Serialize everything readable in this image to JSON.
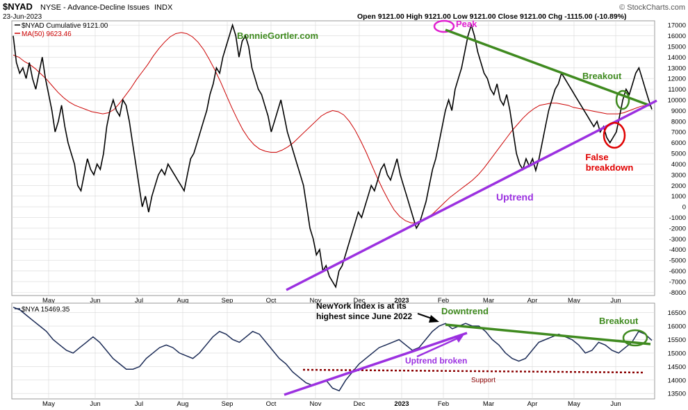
{
  "header": {
    "symbol": "$NYAD",
    "description": "NYSE - Advance-Decline Issues",
    "exchange": "INDX",
    "date": "23-Jun-2023",
    "ohlc": "Open 9121.00   High 9121.00   Low 9121.00   Close 9121.00   Chg -1115.00 (-10.89%)",
    "brand": "© StockCharts.com"
  },
  "colors": {
    "price": "#000000",
    "ma": "#cc0000",
    "nya": "#1a2a55",
    "green": "#3f8a1f",
    "purple": "#9b30e0",
    "red": "#e00000",
    "magenta": "#e020d0",
    "support": "#8b0000",
    "grid": "#d8d8d8"
  },
  "chart_data": [
    {
      "type": "line",
      "legend": [
        "$NYAD Cumulative 9121.00",
        "MA(50) 9623.46"
      ],
      "y_ticks": [
        17000,
        16000,
        15000,
        14000,
        13000,
        12000,
        11000,
        10000,
        9000,
        8000,
        7000,
        6000,
        5000,
        4000,
        3000,
        2000,
        1000,
        0,
        -1000,
        -2000,
        -3000,
        -4000,
        -5000,
        -6000,
        -7000,
        -8000
      ],
      "ylim": [
        -8300,
        17400
      ],
      "months": [
        "May",
        "Jun",
        "Jul",
        "Aug",
        "Sep",
        "Oct",
        "Nov",
        "Dec",
        "2023",
        "Feb",
        "Mar",
        "Apr",
        "May",
        "Jun"
      ],
      "series": [
        {
          "name": "$NYAD Cumulative",
          "values": [
            16000,
            13500,
            12500,
            13000,
            12000,
            13500,
            12000,
            11000,
            12500,
            14000,
            12000,
            10500,
            9000,
            7000,
            8000,
            9500,
            7500,
            6000,
            5000,
            4000,
            2000,
            1500,
            3000,
            4500,
            3500,
            3000,
            4000,
            3500,
            5000,
            7500,
            9000,
            10000,
            9000,
            8500,
            10000,
            9500,
            8000,
            6000,
            4000,
            2000,
            0,
            1000,
            -500,
            1000,
            2000,
            3000,
            3500,
            3000,
            4000,
            3500,
            3000,
            2500,
            2000,
            1500,
            3000,
            4500,
            5000,
            6000,
            7000,
            8000,
            9000,
            10500,
            11500,
            13000,
            12500,
            14000,
            15000,
            16000,
            17000,
            16000,
            14000,
            15500,
            16000,
            15000,
            13000,
            12000,
            11000,
            10500,
            9500,
            8500,
            7000,
            8000,
            9000,
            10000,
            8500,
            7000,
            6000,
            5000,
            4000,
            3000,
            2000,
            0,
            -2000,
            -3000,
            -4500,
            -4000,
            -6000,
            -5500,
            -6500,
            -7000,
            -7500,
            -6000,
            -5500,
            -4500,
            -3500,
            -2500,
            -1500,
            -500,
            -1000,
            0,
            1000,
            2000,
            1500,
            2500,
            3500,
            4000,
            3000,
            2500,
            3500,
            4500,
            3000,
            2000,
            1000,
            0,
            -1000,
            -2000,
            -1500,
            -500,
            500,
            2000,
            3500,
            4500,
            6000,
            7500,
            9000,
            10000,
            9000,
            11000,
            12000,
            13000,
            14500,
            16000,
            17000,
            16000,
            14500,
            13500,
            12500,
            12000,
            11000,
            10500,
            11500,
            10000,
            9500,
            10500,
            9000,
            7000,
            5000,
            4000,
            3500,
            4500,
            3800,
            4500,
            3400,
            4500,
            6000,
            7500,
            9000,
            10000,
            11000,
            11500,
            12500,
            12000,
            11500,
            11000,
            10500,
            10000,
            9500,
            9000,
            8500,
            8000,
            7500,
            8000,
            7000,
            7500,
            6500,
            6000,
            6500,
            7000,
            8500,
            10000,
            11000,
            10500,
            11500,
            12500,
            13000,
            12000,
            11000,
            10000,
            9121
          ],
          "color": "#000000"
        },
        {
          "name": "MA(50)",
          "values": [
            14200,
            14000,
            13600,
            13300,
            12900,
            12400,
            11900,
            11300,
            10700,
            10200,
            9800,
            9500,
            9300,
            9100,
            8900,
            8800,
            8700,
            8800,
            9100,
            9700,
            10400,
            11100,
            11900,
            12600,
            13300,
            14100,
            14800,
            15400,
            15900,
            16200,
            16300,
            16200,
            15900,
            15400,
            14700,
            13800,
            12800,
            11700,
            10500,
            9300,
            8200,
            7200,
            6400,
            5800,
            5400,
            5200,
            5100,
            5100,
            5300,
            5600,
            6000,
            6500,
            7000,
            7500,
            8000,
            8500,
            8800,
            9000,
            8900,
            8600,
            8000,
            7200,
            6200,
            5100,
            3900,
            2700,
            1600,
            600,
            -300,
            -900,
            -1300,
            -1500,
            -1500,
            -1300,
            -1000,
            -600,
            -100,
            400,
            900,
            1300,
            1700,
            2100,
            2500,
            3000,
            3600,
            4300,
            5000,
            5700,
            6400,
            7100,
            7700,
            8300,
            8800,
            9200,
            9500,
            9600,
            9700,
            9700,
            9600,
            9500,
            9300,
            9200,
            9100,
            9000,
            8900,
            8800,
            8700,
            8700,
            8700,
            8800,
            9000,
            9200,
            9400,
            9500,
            9623.46
          ],
          "color": "#cc0000"
        }
      ],
      "annotations": {
        "watermark": "BonnieGortler.com",
        "peak": "Peak",
        "breakout": "Breakout",
        "false_breakdown_1": "False",
        "false_breakdown_2": "breakdown",
        "uptrend": "Uptrend"
      }
    },
    {
      "type": "line",
      "legend": [
        "$NYA 15469.35"
      ],
      "y_ticks": [
        16500,
        16000,
        15500,
        15000,
        14500,
        14000,
        13500
      ],
      "ylim": [
        13300,
        16850
      ],
      "months": [
        "May",
        "Jun",
        "Jul",
        "Aug",
        "Sep",
        "Oct",
        "Nov",
        "Dec",
        "2023",
        "Feb",
        "Mar",
        "Apr",
        "May",
        "Jun"
      ],
      "series": [
        {
          "name": "$NYA",
          "values": [
            16700,
            16600,
            16400,
            16200,
            16000,
            15800,
            15500,
            15300,
            15100,
            15000,
            15200,
            15400,
            15600,
            15400,
            15100,
            14800,
            14600,
            14400,
            14400,
            14500,
            14800,
            15000,
            15200,
            15300,
            15200,
            15000,
            14900,
            14800,
            15000,
            15300,
            15600,
            15800,
            15700,
            15500,
            15400,
            15600,
            15800,
            15700,
            15400,
            15100,
            14800,
            14600,
            14300,
            14100,
            13900,
            13800,
            13900,
            14000,
            13700,
            13600,
            14000,
            14300,
            14600,
            14800,
            15000,
            15200,
            15300,
            15400,
            15500,
            15300,
            15100,
            15200,
            15500,
            15800,
            16000,
            16100,
            15900,
            16000,
            16100,
            16000,
            16000,
            15800,
            15500,
            15300,
            15000,
            14800,
            14700,
            14800,
            15100,
            15400,
            15500,
            15600,
            15700,
            15600,
            15500,
            15300,
            15000,
            15100,
            15400,
            15300,
            15100,
            15000,
            15200,
            15400,
            15800,
            15700,
            15469.35
          ],
          "color": "#1a2a55"
        }
      ],
      "annotations": {
        "newyork_1": "NewYork Index is at its",
        "newyork_2": "highest since June 2022",
        "downtrend": "Downtrend",
        "breakout": "Breakout",
        "uptrend_broken": "Uptrend broken",
        "support": "Support"
      }
    }
  ]
}
